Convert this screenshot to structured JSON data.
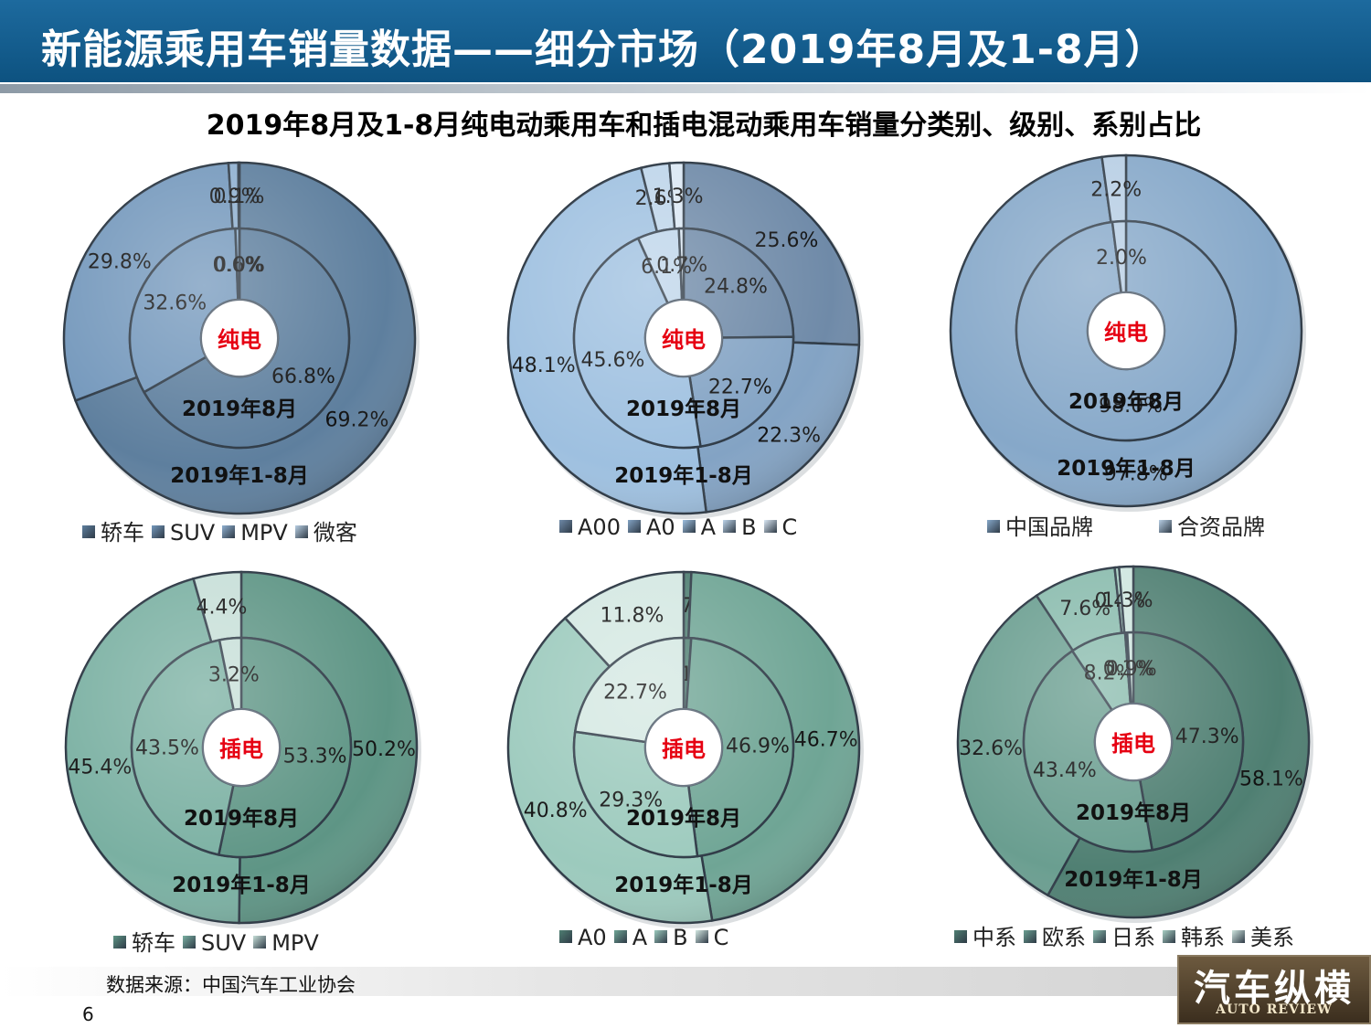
{
  "header": {
    "title": "新能源乘用车销量数据——细分市场（2019年8月及1-8月）"
  },
  "subtitle": "2019年8月及1-8月纯电动乘用车和插电混动乘用车销量分类别、级别、系别占比",
  "colors": {
    "blue_base": "#8aaed0",
    "green_base": "#7ab0a2",
    "dividers": "#2e3a46",
    "inner_label": "#e60012"
  },
  "chart_data": [
    {
      "type": "pie",
      "id": "bev-category",
      "center_label": "纯电",
      "inner_ring_label": "2019年8月",
      "outer_ring_label": "2019年1-8月",
      "categories": [
        "轿车",
        "SUV",
        "MPV",
        "微客"
      ],
      "series": [
        {
          "name": "2019年8月",
          "values": [
            66.8,
            32.6,
            0.6,
            0.0
          ]
        },
        {
          "name": "2019年1-8月",
          "values": [
            69.2,
            29.8,
            0.9,
            0.1
          ]
        }
      ],
      "colors": [
        "#5e7f9e",
        "#7498bc",
        "#8fb0d0",
        "#b9cfe3"
      ]
    },
    {
      "type": "pie",
      "id": "bev-class",
      "center_label": "纯电",
      "inner_ring_label": "2019年8月",
      "outer_ring_label": "2019年1-8月",
      "categories": [
        "A00",
        "A0",
        "A",
        "B",
        "C"
      ],
      "series": [
        {
          "name": "2019年8月",
          "values": [
            24.8,
            22.7,
            45.6,
            6.1,
            0.7
          ]
        },
        {
          "name": "2019年1-8月",
          "values": [
            25.6,
            22.3,
            48.1,
            2.6,
            1.3
          ]
        }
      ],
      "colors": [
        "#6f8aa8",
        "#83a3c4",
        "#9ec0e0",
        "#bed5ea",
        "#dbe8f4"
      ]
    },
    {
      "type": "pie",
      "id": "bev-origin",
      "center_label": "纯电",
      "inner_ring_label": "2019年8月",
      "outer_ring_label": "2019年1-8月",
      "categories": [
        "中国品牌",
        "合资品牌"
      ],
      "series": [
        {
          "name": "2019年8月",
          "values": [
            98.0,
            2.0
          ]
        },
        {
          "name": "2019年1-8月",
          "values": [
            97.8,
            2.2
          ]
        }
      ],
      "colors": [
        "#86a8c9",
        "#b7cee4"
      ]
    },
    {
      "type": "pie",
      "id": "phev-category",
      "center_label": "插电",
      "inner_ring_label": "2019年8月",
      "outer_ring_label": "2019年1-8月",
      "categories": [
        "轿车",
        "SUV",
        "MPV"
      ],
      "series": [
        {
          "name": "2019年8月",
          "values": [
            53.3,
            43.5,
            3.2
          ]
        },
        {
          "name": "2019年1-8月",
          "values": [
            50.2,
            45.4,
            4.4
          ]
        }
      ],
      "colors": [
        "#5e9585",
        "#7ab0a2",
        "#c7dfd8"
      ]
    },
    {
      "type": "pie",
      "id": "phev-class",
      "center_label": "插电",
      "inner_ring_label": "2019年8月",
      "outer_ring_label": "2019年1-8月",
      "categories": [
        "A0",
        "A",
        "B",
        "C"
      ],
      "series": [
        {
          "name": "2019年8月",
          "values": [
            1.1,
            46.9,
            29.3,
            22.7
          ]
        },
        {
          "name": "2019年1-8月",
          "values": [
            0.7,
            46.7,
            40.8,
            11.8
          ]
        }
      ],
      "colors": [
        "#4f7f72",
        "#6fa595",
        "#9ccabd",
        "#d4e8e2"
      ]
    },
    {
      "type": "pie",
      "id": "phev-origin",
      "center_label": "插电",
      "inner_ring_label": "2019年8月",
      "outer_ring_label": "2019年1-8月",
      "categories": [
        "中系",
        "欧系",
        "日系",
        "韩系",
        "美系"
      ],
      "series": [
        {
          "name": "2019年8月",
          "values": [
            47.3,
            43.4,
            8.2,
            0.3,
            0.9
          ]
        },
        {
          "name": "2019年1-8月",
          "values": [
            58.1,
            32.6,
            7.6,
            0.4,
            1.3
          ]
        }
      ],
      "colors": [
        "#4f7f72",
        "#6a9e90",
        "#89bbad",
        "#a9d0c4",
        "#cfe6df"
      ]
    }
  ],
  "footer": {
    "source": "数据来源：中国汽车工业协会",
    "page": "6"
  },
  "logo": {
    "text": "汽车纵横",
    "subtext": "AUTO REVIEW"
  }
}
